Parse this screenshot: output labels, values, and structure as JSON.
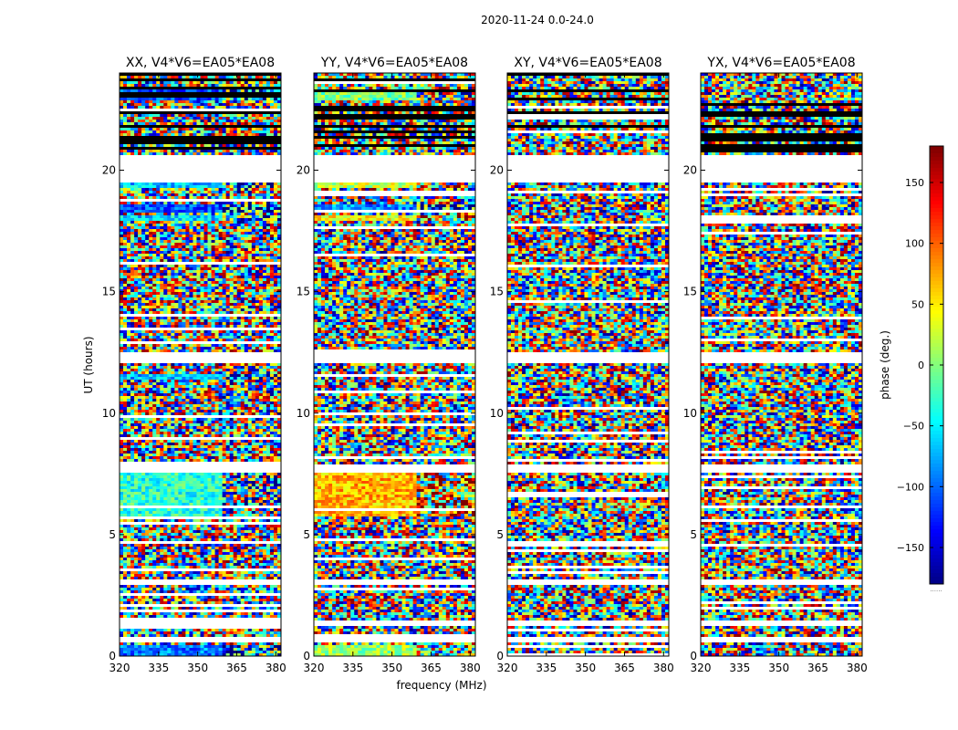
{
  "chart_data": {
    "type": "heatmap",
    "suptitle": "2020-11-24 0.0-24.0",
    "xlabel": "frequency (MHz)",
    "ylabel": "UT (hours)",
    "xlim": [
      320,
      382
    ],
    "ylim": [
      0,
      24
    ],
    "xticks": [
      320,
      335,
      350,
      365,
      380
    ],
    "yticks": [
      0,
      5,
      10,
      15,
      20
    ],
    "panels": [
      {
        "title": "XX, V4*V6=EA05*EA08",
        "pol": "XX"
      },
      {
        "title": "YY, V4*V6=EA05*EA08",
        "pol": "YY"
      },
      {
        "title": "XY, V4*V6=EA05*EA08",
        "pol": "XY"
      },
      {
        "title": "YX, V4*V6=EA05*EA08",
        "pol": "YX"
      }
    ],
    "colorbar": {
      "label": "phase (deg.)",
      "vmin": -180,
      "vmax": 180,
      "ticks": [
        -150,
        -100,
        -50,
        0,
        50,
        100,
        150
      ],
      "tick_labels": [
        "−150",
        "−100",
        "−50",
        "0",
        "50",
        "100",
        "150"
      ],
      "colormap": "jet",
      "footer": "......"
    },
    "flagged_ut_hours": [
      [
        0.55,
        0.75
      ],
      [
        1.25,
        1.45
      ],
      [
        2.95,
        3.2
      ],
      [
        19.45,
        20.6
      ],
      [
        12.1,
        12.5
      ],
      [
        7.6,
        7.85
      ]
    ],
    "coherent_blocks": [
      {
        "panels": [
          "XX"
        ],
        "ut": [
          22.85,
          23.35
        ],
        "phase": -110
      },
      {
        "panels": [
          "XX"
        ],
        "ut": [
          19.25,
          19.45
        ],
        "phase": -65
      },
      {
        "panels": [
          "XX"
        ],
        "ut": [
          17.9,
          18.15
        ],
        "phase": -60
      },
      {
        "panels": [
          "XX"
        ],
        "ut": [
          18.3,
          18.6
        ],
        "phase": -105
      },
      {
        "panels": [
          "XX"
        ],
        "ut": [
          5.8,
          7.6
        ],
        "phase": -30
      },
      {
        "panels": [
          "XX"
        ],
        "ut": [
          0.05,
          0.45
        ],
        "phase": -90
      },
      {
        "panels": [
          "XX"
        ],
        "ut": [
          11.4,
          11.6
        ],
        "phase": -70
      },
      {
        "panels": [
          "YY"
        ],
        "ut": [
          22.85,
          23.35
        ],
        "phase": -5
      },
      {
        "panels": [
          "YY"
        ],
        "ut": [
          19.25,
          19.45
        ],
        "phase": 25
      },
      {
        "panels": [
          "YY"
        ],
        "ut": [
          18.3,
          18.6
        ],
        "phase": -85
      },
      {
        "panels": [
          "YY"
        ],
        "ut": [
          17.9,
          18.15
        ],
        "phase": 45
      },
      {
        "panels": [
          "YY"
        ],
        "ut": [
          5.8,
          7.6
        ],
        "phase": 70
      },
      {
        "panels": [
          "YY"
        ],
        "ut": [
          0.05,
          0.45
        ],
        "phase": 10
      }
    ]
  }
}
